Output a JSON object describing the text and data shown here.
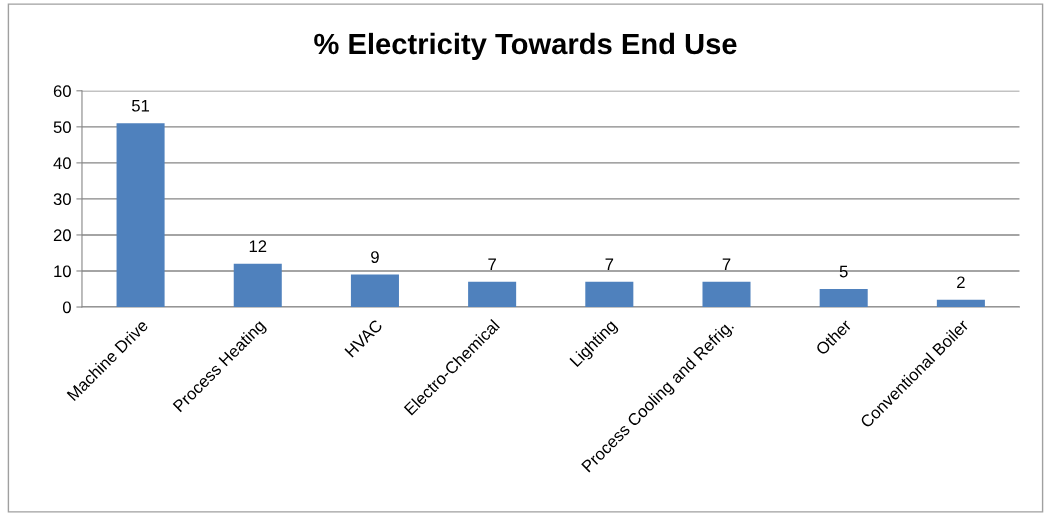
{
  "chart_data": {
    "type": "bar",
    "title": "% Electricity Towards End Use",
    "categories": [
      "Machine Drive",
      "Process Heating",
      "HVAC",
      "Electro-Chemical",
      "Lighting",
      "Process Cooling and Refrig.",
      "Other",
      "Conventional Boiler"
    ],
    "values": [
      51,
      12,
      9,
      7,
      7,
      7,
      5,
      2
    ],
    "color": "#4f81bd",
    "ylim": [
      0,
      60
    ],
    "yticks": [
      0,
      10,
      20,
      30,
      40,
      50,
      60
    ],
    "grid": "y",
    "data_labels": true
  }
}
